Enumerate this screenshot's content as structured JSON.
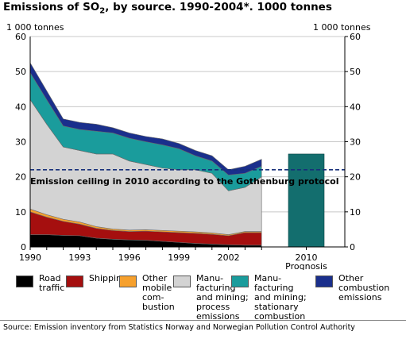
{
  "title": {
    "main": "Emissions of SO",
    "sub": "2",
    "rest": ", by source. 1990-2004*. 1000 tonnes"
  },
  "source": "Source: Emission inventory from Statistics Norway and Norwegian Pollution Control Authority",
  "chart_data": {
    "type": "area",
    "title": "Emissions of SO2, by source. 1990-2004*. 1000 tonnes",
    "ylabel_left": "1 000 tonnes",
    "ylabel_right": "1 000 tonnes",
    "ylim": [
      0,
      60
    ],
    "yticks": [
      0,
      10,
      20,
      30,
      40,
      50,
      60
    ],
    "x": [
      1990,
      1991,
      1992,
      1993,
      1994,
      1995,
      1996,
      1997,
      1998,
      1999,
      2000,
      2001,
      2002,
      2003,
      2004
    ],
    "xticks": [
      "1990",
      "1993",
      "1996",
      "1999",
      "2002"
    ],
    "stacked": true,
    "series": [
      {
        "name": "Road traffic",
        "color": "#000000",
        "values": [
          3.5,
          3.5,
          3.3,
          3.2,
          2.5,
          2.2,
          2.0,
          1.9,
          1.6,
          1.3,
          1.0,
          0.8,
          0.6,
          0.5,
          0.5
        ]
      },
      {
        "name": "Shipping",
        "color": "#a50f0f",
        "values": [
          6.5,
          5.0,
          4.0,
          3.3,
          2.8,
          2.5,
          2.4,
          2.6,
          2.7,
          2.8,
          2.9,
          2.8,
          2.6,
          3.6,
          3.6
        ]
      },
      {
        "name": "Other mobile combustion",
        "color": "#f6a02d",
        "values": [
          0.8,
          0.7,
          0.6,
          0.6,
          0.5,
          0.4,
          0.4,
          0.4,
          0.4,
          0.4,
          0.4,
          0.4,
          0.3,
          0.3,
          0.3
        ]
      },
      {
        "name": "Manufacturing and mining; process emissions",
        "color": "#d3d3d3",
        "values": [
          31.2,
          25.8,
          20.6,
          20.4,
          20.7,
          21.4,
          19.7,
          18.6,
          17.8,
          17.5,
          17.7,
          17.0,
          12.5,
          12.6,
          15.6
        ]
      },
      {
        "name": "Manufacturing and mining; stationary combustion",
        "color": "#1a9c9c",
        "values": [
          7.7,
          7.0,
          6.0,
          6.0,
          6.5,
          6.0,
          6.5,
          6.5,
          6.6,
          6.0,
          4.0,
          3.5,
          4.5,
          4.0,
          3.0
        ]
      },
      {
        "name": "Other combustion emissions",
        "color": "#1a2f8c",
        "values": [
          2.8,
          2.5,
          2.0,
          2.0,
          2.0,
          1.5,
          1.5,
          1.5,
          1.7,
          1.5,
          1.5,
          1.5,
          1.5,
          2.0,
          2.0
        ]
      }
    ],
    "prognosis": {
      "label": "2010",
      "sublabel": "Prognosis",
      "value": 26.5,
      "color": "#136e6e"
    },
    "ceiling": {
      "value": 22,
      "label": "Emission ceiling in 2010 according to the Gothenburg protocol",
      "color": "#17307a"
    }
  },
  "legend": [
    {
      "label_lines": [
        "Road",
        "traffic"
      ],
      "color": "#000000"
    },
    {
      "label_lines": [
        "Shipping"
      ],
      "color": "#a50f0f"
    },
    {
      "label_lines": [
        "Other",
        "mobile",
        "com-",
        "bustion"
      ],
      "color": "#f6a02d"
    },
    {
      "label_lines": [
        "Manu-",
        "facturing",
        "and mining;",
        "process",
        "emissions"
      ],
      "color": "#d3d3d3"
    },
    {
      "label_lines": [
        "Manu-",
        "facturing",
        "and mining;",
        "stationary",
        "combustion"
      ],
      "color": "#1a9c9c"
    },
    {
      "label_lines": [
        "Other",
        "combustion",
        "emissions"
      ],
      "color": "#1a2f8c"
    }
  ]
}
